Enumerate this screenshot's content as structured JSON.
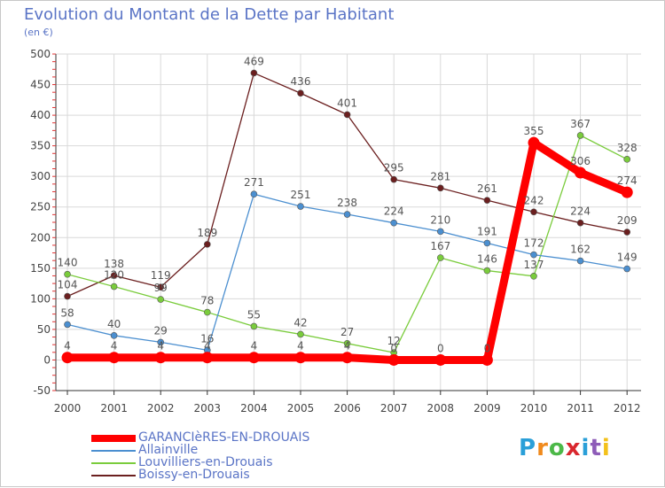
{
  "header": {
    "title": "Evolution du Montant de la Dette par Habitant",
    "unit": "(en €)"
  },
  "brand": {
    "letters": [
      "P",
      "r",
      "o",
      "x",
      "i",
      "t",
      "i"
    ],
    "colors": [
      "#2a9fd8",
      "#f08a1c",
      "#4cb848",
      "#d9272e",
      "#2a9fd8",
      "#8e5cb8",
      "#f3c11b"
    ]
  },
  "chart_data": {
    "type": "line",
    "title": "Evolution du Montant de la Dette par Habitant",
    "ylabel": "(en €)",
    "xlabel": "",
    "x": [
      "2000",
      "2001",
      "2002",
      "2003",
      "2004",
      "2005",
      "2006",
      "2007",
      "2008",
      "2009",
      "2010",
      "2011",
      "2012"
    ],
    "ylim": [
      -50,
      500
    ],
    "yticks": [
      -50,
      0,
      50,
      100,
      150,
      200,
      250,
      300,
      350,
      400,
      450,
      500
    ],
    "grid": true,
    "legend_position": "bottom-left",
    "series": [
      {
        "name": "GARANCIèRES-EN-DROUAIS",
        "color": "#ff0000",
        "values": [
          4,
          4,
          4,
          4,
          4,
          4,
          4,
          0,
          0,
          0,
          355,
          306,
          274
        ],
        "labels": [
          "4",
          "4",
          "4",
          "4",
          "4",
          "4",
          "4",
          "0",
          "0",
          "0",
          "355",
          "306",
          "274"
        ]
      },
      {
        "name": "Allainville",
        "color": "#4b8fd0",
        "values": [
          58,
          40,
          29,
          16,
          271,
          251,
          238,
          224,
          210,
          191,
          172,
          162,
          149
        ],
        "labels": [
          "58",
          "40",
          "29",
          "16",
          "271",
          "251",
          "238",
          "224",
          "210",
          "191",
          "172",
          "162",
          "149"
        ]
      },
      {
        "name": "Louvilliers-en-Drouais",
        "color": "#7acc3c",
        "values": [
          140,
          120,
          99,
          78,
          55,
          42,
          27,
          12,
          167,
          146,
          137,
          367,
          328
        ],
        "labels": [
          "140",
          "120",
          "99",
          "78",
          "55",
          "42",
          "27",
          "12",
          "167",
          "146",
          "137",
          "367",
          "328"
        ]
      },
      {
        "name": "Boissy-en-Drouais",
        "color": "#6b1f1f",
        "values": [
          104,
          138,
          119,
          189,
          469,
          436,
          401,
          295,
          281,
          261,
          242,
          224,
          209
        ],
        "labels": [
          "104",
          "138",
          "119",
          "189",
          "469",
          "436",
          "401",
          "295",
          "281",
          "261",
          "242",
          "224",
          "209"
        ]
      }
    ]
  }
}
